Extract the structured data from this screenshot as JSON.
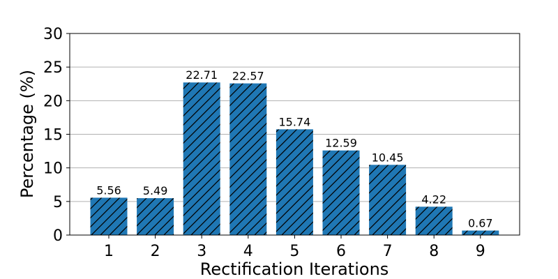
{
  "chart_data": {
    "type": "bar",
    "categories": [
      "1",
      "2",
      "3",
      "4",
      "5",
      "6",
      "7",
      "8",
      "9"
    ],
    "values": [
      5.56,
      5.49,
      22.71,
      22.57,
      15.74,
      12.59,
      10.45,
      4.22,
      0.67
    ],
    "value_labels": [
      "5.56",
      "5.49",
      "22.71",
      "22.57",
      "15.74",
      "12.59",
      "10.45",
      "4.22",
      "0.67"
    ],
    "title": "",
    "xlabel": "Rectification Iterations",
    "ylabel": "Percentage (%)",
    "ylim": [
      0,
      30
    ],
    "yticks": [
      "0",
      "5",
      "10",
      "15",
      "20",
      "25",
      "30"
    ],
    "grid": "horizontal",
    "bar_color": "#1f77b4",
    "bar_hatch": "diagonal"
  }
}
